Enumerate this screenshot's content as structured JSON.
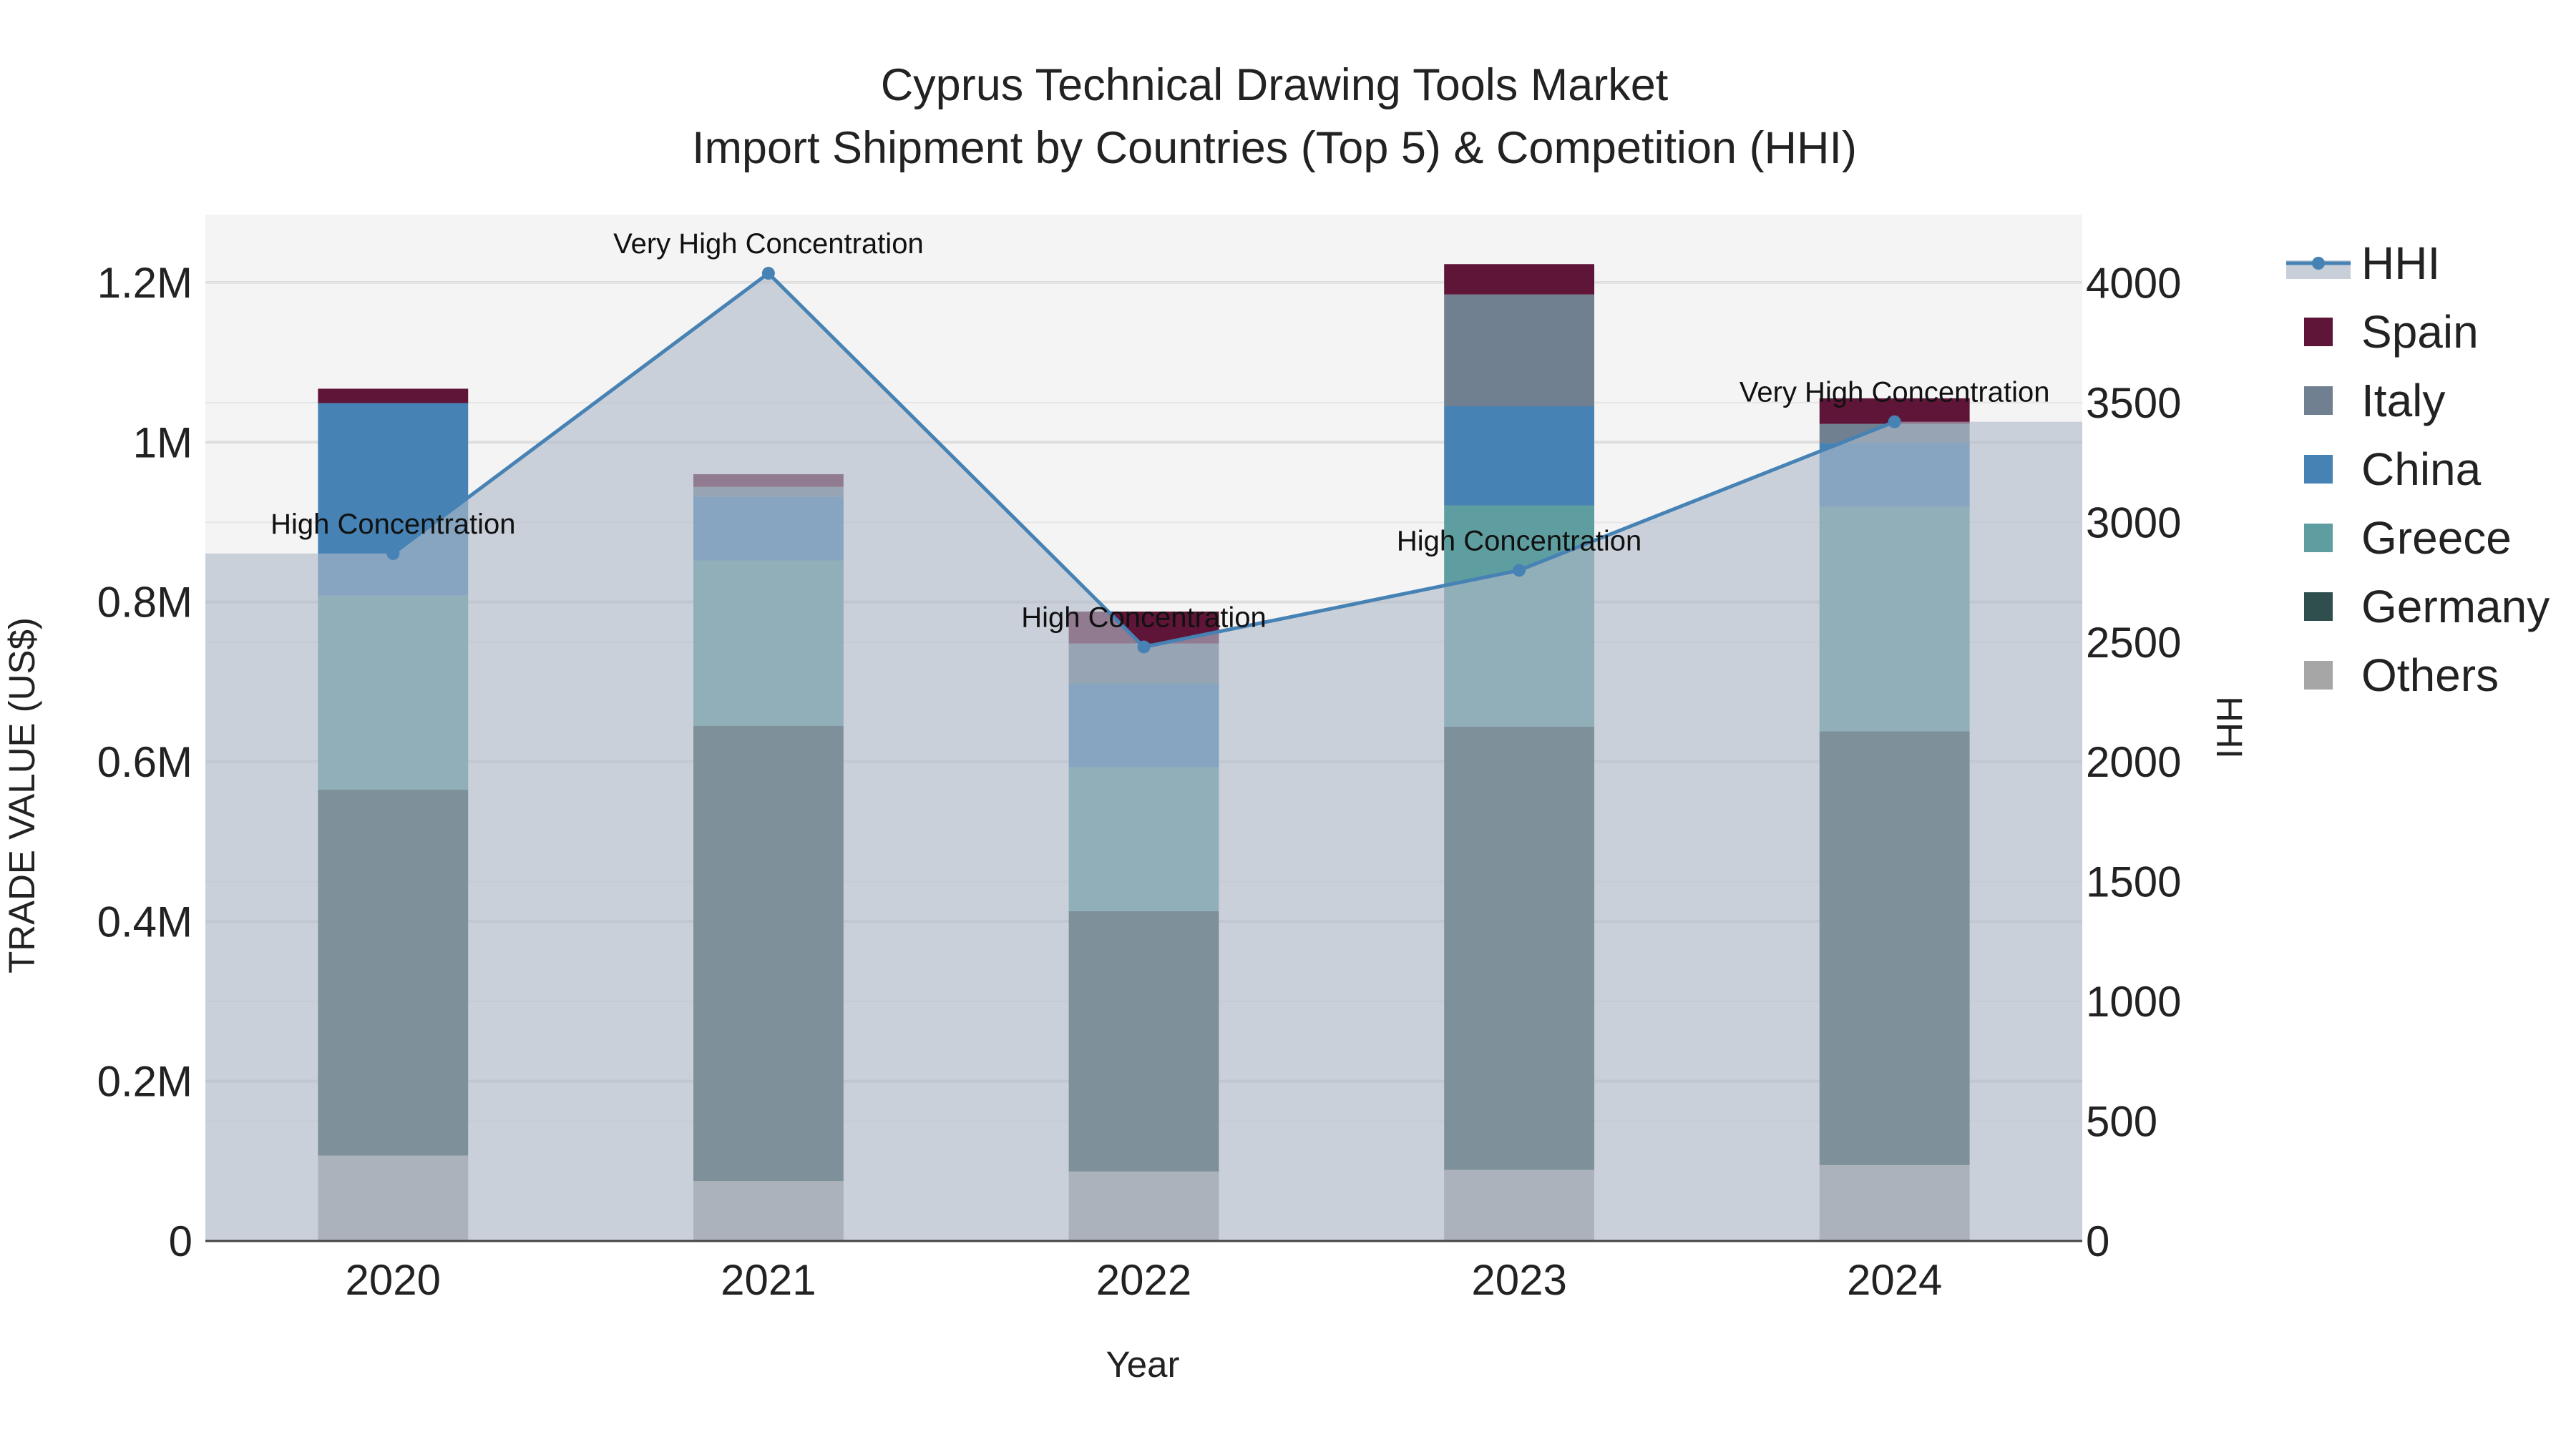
{
  "chart_data": {
    "type": "bar",
    "title_line1": "Cyprus Technical Drawing Tools Market",
    "title_line2": "Import Shipment by Countries (Top 5) & Competition (HHI)",
    "xlabel": "Year",
    "ylabel": "TRADE VALUE (US$)",
    "y2label": "HHI",
    "categories": [
      "2020",
      "2021",
      "2022",
      "2023",
      "2024"
    ],
    "ylim": [
      0,
      1285000
    ],
    "y_ticks": [
      0,
      200000,
      400000,
      600000,
      800000,
      1000000,
      1200000
    ],
    "y_tick_labels": [
      "0",
      "0.2M",
      "0.4M",
      "0.6M",
      "0.8M",
      "1M",
      "1.2M"
    ],
    "y2lim": [
      0,
      4285
    ],
    "y2_ticks": [
      0,
      500,
      1000,
      1500,
      2000,
      2500,
      3000,
      3500,
      4000
    ],
    "y2_tick_labels": [
      "0",
      "500",
      "1000",
      "1500",
      "2000",
      "2500",
      "3000",
      "3500",
      "4000"
    ],
    "series": [
      {
        "name": "Others",
        "color": "#a6a6a6",
        "values": [
          107000,
          75000,
          87000,
          89000,
          95000
        ]
      },
      {
        "name": "Germany",
        "color": "#2f4f4f",
        "values": [
          458000,
          570000,
          326000,
          555000,
          543000
        ]
      },
      {
        "name": "Greece",
        "color": "#5f9ea0",
        "values": [
          243000,
          207000,
          180000,
          277000,
          281000
        ]
      },
      {
        "name": "China",
        "color": "#4682b4",
        "values": [
          241000,
          80000,
          105000,
          124000,
          80000
        ]
      },
      {
        "name": "Italy",
        "color": "#708090",
        "values": [
          0,
          12000,
          50000,
          140000,
          24000
        ]
      },
      {
        "name": "Spain",
        "color": "#5f1538",
        "values": [
          18000,
          16000,
          40000,
          38000,
          32000
        ]
      }
    ],
    "hhi": {
      "name": "HHI",
      "color": "#4682b4",
      "values": [
        2870,
        4040,
        2480,
        2800,
        3420
      ],
      "labels": [
        "High Concentration",
        "Very High Concentration",
        "High Concentration",
        "High Concentration",
        "Very High Concentration"
      ]
    },
    "legend_order": [
      "HHI",
      "Spain",
      "Italy",
      "China",
      "Greece",
      "Germany",
      "Others"
    ],
    "plot_bg": "#f4f4f4",
    "grid": true
  }
}
